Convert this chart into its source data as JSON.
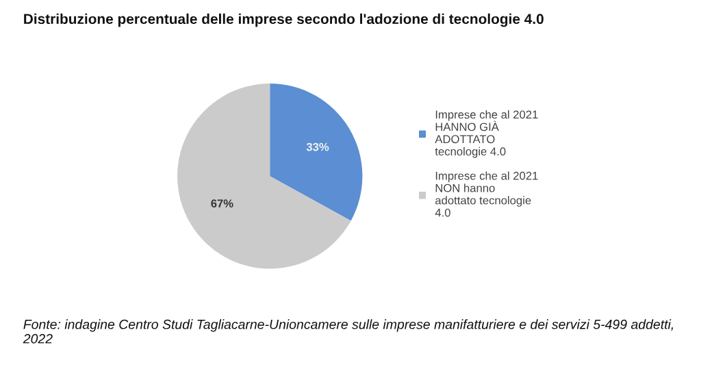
{
  "chart_data": {
    "type": "pie",
    "title": "Distribuzione percentuale delle imprese secondo l'adozione di tecnologie 4.0",
    "categories": [
      "Imprese che al 2021\nHANNO GIÀ\nADOTTATO\ntecnologie 4.0",
      "Imprese che al 2021\nNON hanno\nadottato tecnologie\n4.0"
    ],
    "values": [
      33,
      67
    ],
    "colors": [
      "#5b8ed3",
      "#cbcbcb"
    ],
    "value_labels": [
      "33%",
      "67%"
    ],
    "legend": "right",
    "annotations": [
      "Fonte: indagine Centro Studi Tagliacarne-Unioncamere sulle imprese manifatturiere e dei servizi 5-499 addetti, 2022"
    ]
  }
}
